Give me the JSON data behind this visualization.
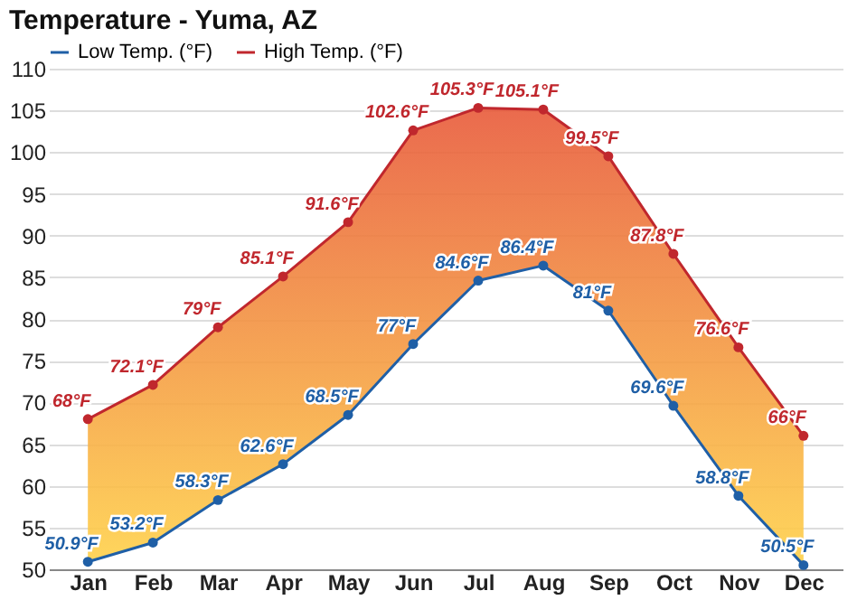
{
  "chart_data": {
    "type": "line",
    "title": "Temperature - Yuma, AZ",
    "categories": [
      "Jan",
      "Feb",
      "Mar",
      "Apr",
      "May",
      "Jun",
      "Jul",
      "Aug",
      "Sep",
      "Oct",
      "Nov",
      "Dec"
    ],
    "series": [
      {
        "name": "Low Temp. (°F)",
        "color": "#1f5fa6",
        "values": [
          50.9,
          53.2,
          58.3,
          62.6,
          68.5,
          77,
          84.6,
          86.4,
          81,
          69.6,
          58.8,
          50.5
        ],
        "value_labels": [
          "50.9°F",
          "53.2°F",
          "58.3°F",
          "62.6°F",
          "68.5°F",
          "77°F",
          "84.6°F",
          "86.4°F",
          "81°F",
          "69.6°F",
          "58.8°F",
          "50.5°F"
        ]
      },
      {
        "name": "High Temp. (°F)",
        "color": "#c0272d",
        "values": [
          68,
          72.1,
          79,
          85.1,
          91.6,
          102.6,
          105.3,
          105.1,
          99.5,
          87.8,
          76.6,
          66
        ],
        "value_labels": [
          "68°F",
          "72.1°F",
          "79°F",
          "85.1°F",
          "91.6°F",
          "102.6°F",
          "105.3°F",
          "105.1°F",
          "99.5°F",
          "87.8°F",
          "76.6°F",
          "66°F"
        ]
      }
    ],
    "ylim": [
      50,
      110
    ],
    "yticks": [
      50,
      55,
      60,
      65,
      70,
      75,
      80,
      85,
      90,
      95,
      100,
      105,
      110
    ],
    "grid": "y",
    "legend": "top left",
    "marker": "circle",
    "line_style": "solid"
  }
}
